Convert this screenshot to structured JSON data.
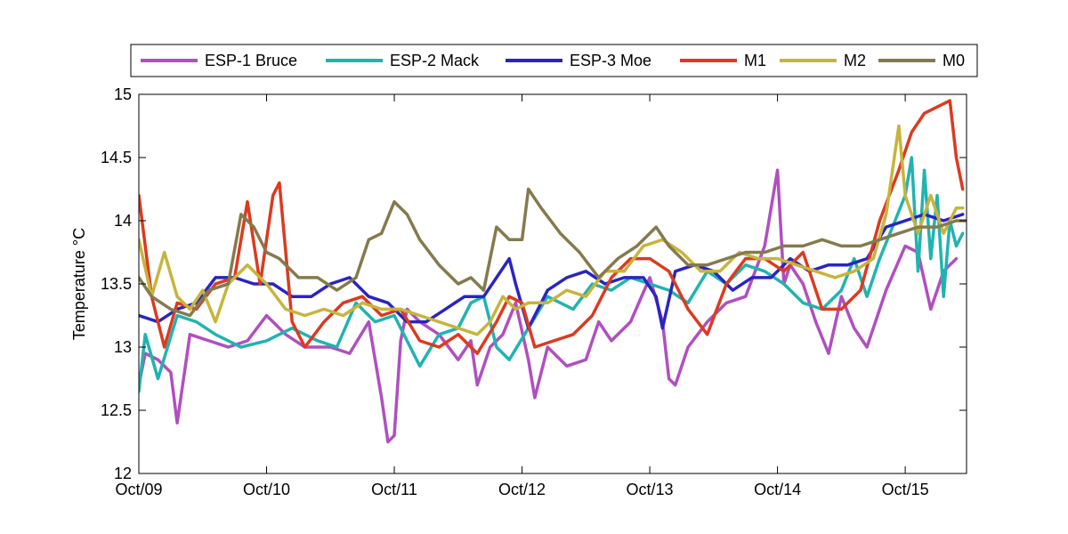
{
  "chart_data": {
    "type": "line",
    "ylabel": "Temperature °C",
    "xlabel": "",
    "title": "",
    "ylim": [
      12,
      15
    ],
    "xlim": [
      0,
      6.48
    ],
    "y_ticks": [
      12,
      12.5,
      13,
      13.5,
      14,
      14.5,
      15
    ],
    "x_ticks": [
      {
        "x": 0,
        "label": "Oct/09"
      },
      {
        "x": 1,
        "label": "Oct/10"
      },
      {
        "x": 2,
        "label": "Oct/11"
      },
      {
        "x": 3,
        "label": "Oct/12"
      },
      {
        "x": 4,
        "label": "Oct/13"
      },
      {
        "x": 5,
        "label": "Oct/14"
      },
      {
        "x": 6,
        "label": "Oct/15"
      }
    ],
    "legend_position": "top",
    "grid": false,
    "series": [
      {
        "name": "ESP-1 Bruce",
        "color": "#b04fc0",
        "x": [
          0,
          0.05,
          0.15,
          0.25,
          0.3,
          0.4,
          0.55,
          0.7,
          0.85,
          1.0,
          1.15,
          1.3,
          1.5,
          1.65,
          1.8,
          1.9,
          1.95,
          2.0,
          2.05,
          2.1,
          2.2,
          2.35,
          2.5,
          2.6,
          2.65,
          2.75,
          2.85,
          2.95,
          3.05,
          3.1,
          3.2,
          3.35,
          3.5,
          3.6,
          3.7,
          3.85,
          4.0,
          4.1,
          4.15,
          4.2,
          4.3,
          4.45,
          4.6,
          4.75,
          4.9,
          5.0,
          5.05,
          5.1,
          5.2,
          5.3,
          5.4,
          5.5,
          5.6,
          5.7,
          5.85,
          6.0,
          6.1,
          6.2,
          6.3,
          6.35,
          6.4
        ],
        "y": [
          12.7,
          12.95,
          12.9,
          12.8,
          12.4,
          13.1,
          13.05,
          13.0,
          13.05,
          13.25,
          13.1,
          13.0,
          13.0,
          12.95,
          13.2,
          12.6,
          12.25,
          12.3,
          13.05,
          13.3,
          13.2,
          13.1,
          12.9,
          13.05,
          12.7,
          13.0,
          13.1,
          13.35,
          12.9,
          12.6,
          13.0,
          12.85,
          12.9,
          13.2,
          13.05,
          13.2,
          13.55,
          13.2,
          12.75,
          12.7,
          13.0,
          13.2,
          13.35,
          13.4,
          13.8,
          14.4,
          13.5,
          13.65,
          13.5,
          13.2,
          12.95,
          13.4,
          13.15,
          13.0,
          13.45,
          13.8,
          13.75,
          13.3,
          13.6,
          13.65,
          13.7
        ]
      },
      {
        "name": "ESP-2 Mack",
        "color": "#21b3b0",
        "x": [
          0,
          0.05,
          0.15,
          0.3,
          0.45,
          0.6,
          0.8,
          1.0,
          1.2,
          1.4,
          1.55,
          1.7,
          1.85,
          2.0,
          2.1,
          2.2,
          2.35,
          2.5,
          2.6,
          2.7,
          2.8,
          2.9,
          3.05,
          3.2,
          3.3,
          3.4,
          3.55,
          3.7,
          3.85,
          4.0,
          4.15,
          4.3,
          4.45,
          4.6,
          4.75,
          4.9,
          5.05,
          5.2,
          5.35,
          5.5,
          5.6,
          5.7,
          5.8,
          5.9,
          6.0,
          6.05,
          6.1,
          6.15,
          6.2,
          6.25,
          6.3,
          6.35,
          6.4,
          6.45
        ],
        "y": [
          12.65,
          13.1,
          12.75,
          13.25,
          13.2,
          13.1,
          13.0,
          13.05,
          13.15,
          13.05,
          13.0,
          13.35,
          13.2,
          13.25,
          13.05,
          12.85,
          13.1,
          13.15,
          13.35,
          13.4,
          13.0,
          12.9,
          13.15,
          13.4,
          13.35,
          13.3,
          13.5,
          13.45,
          13.55,
          13.5,
          13.45,
          13.35,
          13.6,
          13.5,
          13.65,
          13.6,
          13.5,
          13.35,
          13.3,
          13.45,
          13.7,
          13.4,
          13.7,
          13.95,
          14.2,
          14.5,
          13.6,
          14.4,
          13.7,
          14.2,
          13.4,
          14.0,
          13.8,
          13.9
        ]
      },
      {
        "name": "ESP-3 Moe",
        "color": "#2a24c2",
        "x": [
          0,
          0.15,
          0.3,
          0.45,
          0.6,
          0.75,
          0.9,
          1.05,
          1.2,
          1.35,
          1.5,
          1.65,
          1.8,
          1.95,
          2.1,
          2.25,
          2.4,
          2.55,
          2.7,
          2.8,
          2.9,
          2.95,
          3.05,
          3.2,
          3.35,
          3.5,
          3.65,
          3.8,
          3.95,
          4.05,
          4.1,
          4.2,
          4.35,
          4.5,
          4.65,
          4.8,
          4.95,
          5.1,
          5.25,
          5.4,
          5.55,
          5.7,
          5.85,
          6.0,
          6.15,
          6.3,
          6.45
        ],
        "y": [
          13.25,
          13.2,
          13.3,
          13.35,
          13.55,
          13.55,
          13.5,
          13.5,
          13.4,
          13.4,
          13.5,
          13.55,
          13.4,
          13.35,
          13.2,
          13.2,
          13.3,
          13.4,
          13.4,
          13.55,
          13.7,
          13.5,
          13.15,
          13.45,
          13.55,
          13.6,
          13.5,
          13.55,
          13.55,
          13.4,
          13.15,
          13.6,
          13.65,
          13.6,
          13.45,
          13.55,
          13.55,
          13.7,
          13.6,
          13.65,
          13.65,
          13.7,
          13.95,
          14.0,
          14.05,
          14.0,
          14.05
        ]
      },
      {
        "name": "M1",
        "color": "#dc3a20",
        "x": [
          0,
          0.1,
          0.2,
          0.3,
          0.45,
          0.6,
          0.75,
          0.85,
          0.95,
          1.05,
          1.1,
          1.2,
          1.3,
          1.45,
          1.6,
          1.75,
          1.9,
          2.05,
          2.2,
          2.35,
          2.5,
          2.65,
          2.8,
          2.9,
          3.0,
          3.1,
          3.25,
          3.4,
          3.55,
          3.7,
          3.85,
          4.0,
          4.15,
          4.3,
          4.45,
          4.6,
          4.75,
          4.9,
          5.05,
          5.2,
          5.35,
          5.5,
          5.65,
          5.8,
          5.95,
          6.05,
          6.15,
          6.25,
          6.35,
          6.4,
          6.45
        ],
        "y": [
          14.2,
          13.4,
          13.0,
          13.35,
          13.3,
          13.5,
          13.55,
          14.15,
          13.5,
          14.2,
          14.3,
          13.2,
          13.0,
          13.2,
          13.35,
          13.4,
          13.25,
          13.3,
          13.05,
          13.0,
          13.1,
          12.95,
          13.2,
          13.4,
          13.35,
          13.0,
          13.05,
          13.1,
          13.25,
          13.55,
          13.7,
          13.7,
          13.6,
          13.3,
          13.1,
          13.5,
          13.7,
          13.7,
          13.6,
          13.75,
          13.3,
          13.3,
          13.45,
          14.0,
          14.4,
          14.7,
          14.85,
          14.9,
          14.95,
          14.5,
          14.25
        ]
      },
      {
        "name": "M2",
        "color": "#c8b43c",
        "x": [
          0,
          0.1,
          0.2,
          0.3,
          0.4,
          0.5,
          0.6,
          0.7,
          0.85,
          1.0,
          1.15,
          1.3,
          1.45,
          1.6,
          1.75,
          1.9,
          2.05,
          2.2,
          2.35,
          2.5,
          2.65,
          2.75,
          2.85,
          2.95,
          3.05,
          3.2,
          3.35,
          3.5,
          3.65,
          3.8,
          3.95,
          4.1,
          4.25,
          4.4,
          4.55,
          4.7,
          4.85,
          5.0,
          5.15,
          5.3,
          5.45,
          5.6,
          5.75,
          5.85,
          5.9,
          5.95,
          6.0,
          6.1,
          6.2,
          6.3,
          6.4,
          6.45
        ],
        "y": [
          13.85,
          13.4,
          13.75,
          13.4,
          13.3,
          13.45,
          13.2,
          13.5,
          13.65,
          13.5,
          13.3,
          13.25,
          13.3,
          13.25,
          13.35,
          13.3,
          13.3,
          13.25,
          13.2,
          13.15,
          13.1,
          13.2,
          13.4,
          13.3,
          13.35,
          13.35,
          13.45,
          13.4,
          13.6,
          13.6,
          13.8,
          13.85,
          13.75,
          13.6,
          13.6,
          13.75,
          13.7,
          13.7,
          13.65,
          13.6,
          13.55,
          13.6,
          13.7,
          14.05,
          14.4,
          14.75,
          14.2,
          13.9,
          14.2,
          13.9,
          14.1,
          14.1
        ]
      },
      {
        "name": "M0",
        "color": "#857a4c",
        "x": [
          0,
          0.1,
          0.25,
          0.4,
          0.55,
          0.7,
          0.8,
          0.9,
          1.0,
          1.1,
          1.25,
          1.4,
          1.55,
          1.7,
          1.8,
          1.9,
          2.0,
          2.1,
          2.2,
          2.35,
          2.5,
          2.6,
          2.7,
          2.8,
          2.9,
          3.0,
          3.05,
          3.15,
          3.3,
          3.45,
          3.6,
          3.75,
          3.9,
          4.05,
          4.15,
          4.3,
          4.45,
          4.6,
          4.75,
          4.9,
          5.05,
          5.2,
          5.35,
          5.5,
          5.65,
          5.8,
          5.95,
          6.1,
          6.25,
          6.4,
          6.48
        ],
        "y": [
          13.55,
          13.4,
          13.3,
          13.25,
          13.45,
          13.5,
          14.05,
          13.95,
          13.75,
          13.7,
          13.55,
          13.55,
          13.45,
          13.55,
          13.85,
          13.9,
          14.15,
          14.05,
          13.85,
          13.65,
          13.5,
          13.55,
          13.45,
          13.95,
          13.85,
          13.85,
          14.25,
          14.1,
          13.9,
          13.75,
          13.55,
          13.7,
          13.8,
          13.95,
          13.8,
          13.65,
          13.65,
          13.7,
          13.75,
          13.75,
          13.8,
          13.8,
          13.85,
          13.8,
          13.8,
          13.85,
          13.9,
          13.95,
          13.95,
          14.0,
          14.0
        ]
      }
    ]
  }
}
